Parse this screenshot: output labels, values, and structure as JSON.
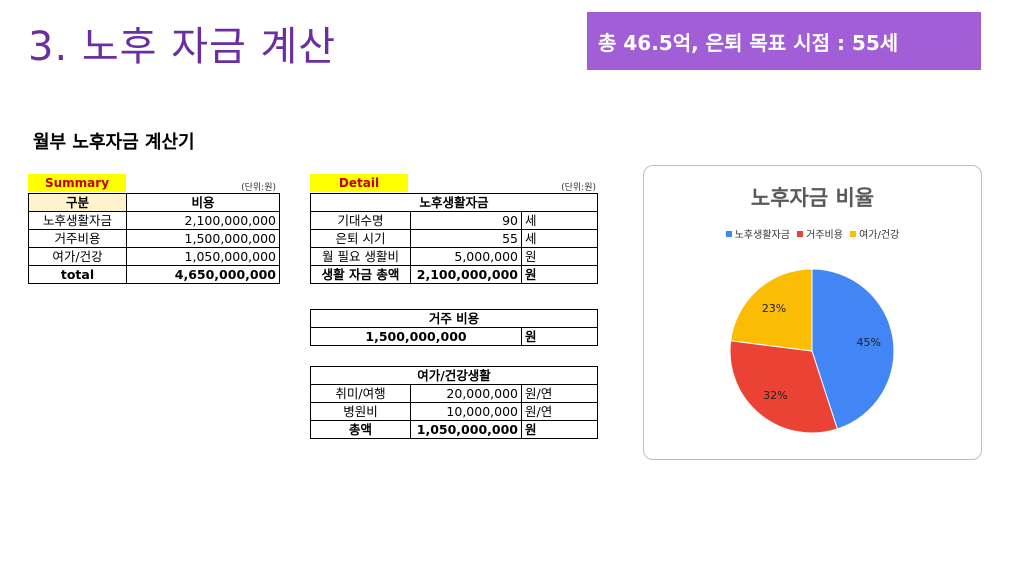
{
  "page": {
    "title": "3. 노후 자금 계산",
    "banner": "총 46.5억, 은퇴 목표 시점  : 55세",
    "subtitle": "월부 노후자금 계산기"
  },
  "summary": {
    "tag": "Summary",
    "unit": "(단위:원)",
    "headers": [
      "구분",
      "비용"
    ],
    "rows": [
      {
        "label": "노후생활자금",
        "value": "2,100,000,000"
      },
      {
        "label": "거주비용",
        "value": "1,500,000,000"
      },
      {
        "label": "여가/건강",
        "value": "1,050,000,000"
      }
    ],
    "total": {
      "label": "total",
      "value": "4,650,000,000"
    }
  },
  "detail": {
    "tag": "Detail",
    "unit": "(단위:원)",
    "living": {
      "header": "노후생활자금",
      "rows": [
        {
          "label": "기대수명",
          "value": "90",
          "unit": "세"
        },
        {
          "label": "은퇴 시기",
          "value": "55",
          "unit": "세"
        },
        {
          "label": "월 필요 생활비",
          "value": "5,000,000",
          "unit": "원"
        }
      ],
      "total": {
        "label": "생활 자금 총액",
        "value": "2,100,000,000",
        "unit": "원"
      }
    },
    "housing": {
      "header": "거주 비용",
      "value": "1,500,000,000",
      "unit": "원"
    },
    "leisure": {
      "header": "여가/건강생활",
      "rows": [
        {
          "label": "취미/여행",
          "value": "20,000,000",
          "unit": "원/연"
        },
        {
          "label": "병원비",
          "value": "10,000,000",
          "unit": "원/연"
        }
      ],
      "total": {
        "label": "총액",
        "value": "1,050,000,000",
        "unit": "원"
      }
    }
  },
  "chart_data": {
    "type": "pie",
    "title": "노후자금 비율",
    "legend_position": "top",
    "categories": [
      "노후생활자금",
      "거주비용",
      "여가/건강"
    ],
    "values": [
      45,
      32,
      23
    ],
    "labels": [
      "45%",
      "32%",
      "23%"
    ],
    "colors": [
      "#4285f4",
      "#ea4335",
      "#fbbc04"
    ]
  }
}
